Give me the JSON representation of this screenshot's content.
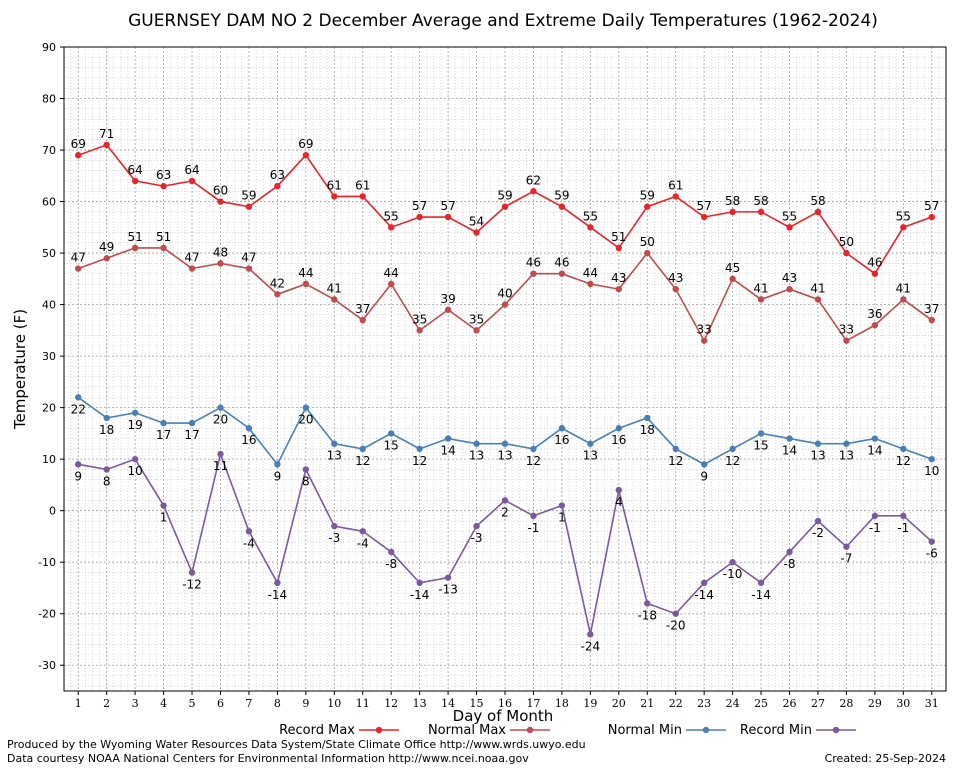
{
  "chart_data": {
    "type": "line",
    "title": "GUERNSEY DAM NO 2 December Average and Extreme Daily Temperatures (1962-2024)",
    "xlabel": "Day of Month",
    "ylabel": "Temperature (F)",
    "x": [
      1,
      2,
      3,
      4,
      5,
      6,
      7,
      8,
      9,
      10,
      11,
      12,
      13,
      14,
      15,
      16,
      17,
      18,
      19,
      20,
      21,
      22,
      23,
      24,
      25,
      26,
      27,
      28,
      29,
      30,
      31
    ],
    "xlim": [
      0.5,
      31.5
    ],
    "ylim": [
      -35,
      90
    ],
    "yticks": [
      -30,
      -20,
      -10,
      0,
      10,
      20,
      30,
      40,
      50,
      60,
      70,
      80,
      90
    ],
    "grid": true,
    "legend_position": "bottom",
    "series": [
      {
        "name": "Record Max",
        "color": "#e8252a",
        "values": [
          69,
          71,
          64,
          63,
          64,
          60,
          59,
          63,
          69,
          61,
          61,
          55,
          57,
          57,
          54,
          59,
          62,
          59,
          55,
          51,
          59,
          61,
          57,
          58,
          58,
          55,
          58,
          50,
          46,
          55,
          57
        ]
      },
      {
        "name": "Normal Max",
        "color": "#bf4b4f",
        "values": [
          47,
          49,
          51,
          51,
          47,
          48,
          47,
          42,
          44,
          41,
          37,
          44,
          35,
          39,
          35,
          40,
          46,
          46,
          44,
          43,
          50,
          43,
          33,
          45,
          41,
          43,
          41,
          33,
          36,
          41,
          37
        ]
      },
      {
        "name": "Normal Min",
        "color": "#4a7fb5",
        "values": [
          22,
          18,
          19,
          17,
          17,
          20,
          16,
          9,
          20,
          13,
          12,
          15,
          12,
          14,
          13,
          13,
          12,
          16,
          13,
          16,
          18,
          12,
          9,
          12,
          15,
          14,
          13,
          13,
          14,
          12,
          10
        ]
      },
      {
        "name": "Record Min",
        "color": "#7b5a9c",
        "values": [
          9,
          8,
          10,
          1,
          -12,
          11,
          -4,
          -14,
          8,
          -3,
          -4,
          -8,
          -14,
          -13,
          -3,
          2,
          -1,
          1,
          -24,
          4,
          -18,
          -20,
          -14,
          -10,
          -14,
          -8,
          -2,
          -7,
          -1,
          -1,
          -6
        ]
      }
    ]
  },
  "footer": {
    "credit_line1": "Produced by the Wyoming Water Resources Data System/State Climate Office http://www.wrds.uwyo.edu",
    "credit_line2": "Data courtesy NOAA National Centers for Environmental Information http://www.ncei.noaa.gov",
    "created": "Created:  25-Sep-2024"
  }
}
